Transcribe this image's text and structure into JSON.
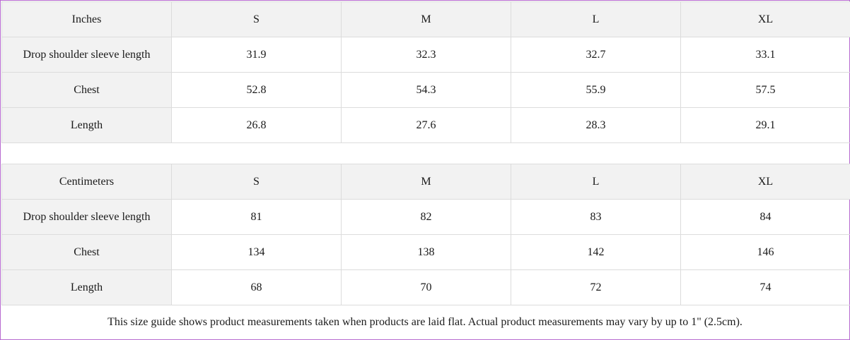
{
  "inches": {
    "header": [
      "Inches",
      "S",
      "M",
      "L",
      "XL"
    ],
    "rows": [
      [
        "Drop shoulder sleeve length",
        "31.9",
        "32.3",
        "32.7",
        "33.1"
      ],
      [
        "Chest",
        "52.8",
        "54.3",
        "55.9",
        "57.5"
      ],
      [
        "Length",
        "26.8",
        "27.6",
        "28.3",
        "29.1"
      ]
    ]
  },
  "centimeters": {
    "header": [
      "Centimeters",
      "S",
      "M",
      "L",
      "XL"
    ],
    "rows": [
      [
        "Drop shoulder sleeve length",
        "81",
        "82",
        "83",
        "84"
      ],
      [
        "Chest",
        "134",
        "138",
        "142",
        "146"
      ],
      [
        "Length",
        "68",
        "70",
        "72",
        "74"
      ]
    ]
  },
  "note": "This size guide shows product measurements taken when products are laid flat.  Actual product measurements may vary by up to 1\" (2.5cm).",
  "colors": {
    "border_accent": "#b76bd0",
    "header_bg": "#f2f2f2",
    "grid_line": "#dcdcdc"
  }
}
